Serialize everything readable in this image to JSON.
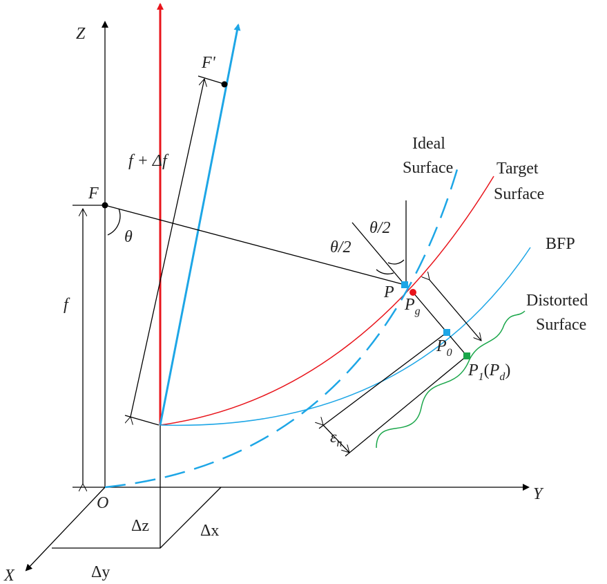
{
  "axes": {
    "z": "Z",
    "y": "Y",
    "x": "X",
    "origin": "O"
  },
  "points": {
    "f_prime": "F'",
    "f": "F",
    "p": "P",
    "pg": {
      "main": "P",
      "sub": "g"
    },
    "p0": {
      "main": "P",
      "sub": "0"
    },
    "p1": {
      "main": "P",
      "sub": "1",
      "paren_main": "P",
      "paren_sub": "d"
    }
  },
  "dimensions": {
    "f_plus_df": "f + Δf",
    "f": "f",
    "theta": "θ",
    "half_theta_1": "θ/2",
    "half_theta_2": "θ/2",
    "eps": {
      "main": "ε",
      "sub": "n"
    },
    "dz": "Δz",
    "dx": "Δx",
    "dy": "Δy"
  },
  "surfaces": {
    "ideal": [
      "Ideal",
      "Surface"
    ],
    "target": [
      "Target",
      "Surface"
    ],
    "bfp": "BFP",
    "distorted": [
      "Distorted",
      "Surface"
    ]
  }
}
